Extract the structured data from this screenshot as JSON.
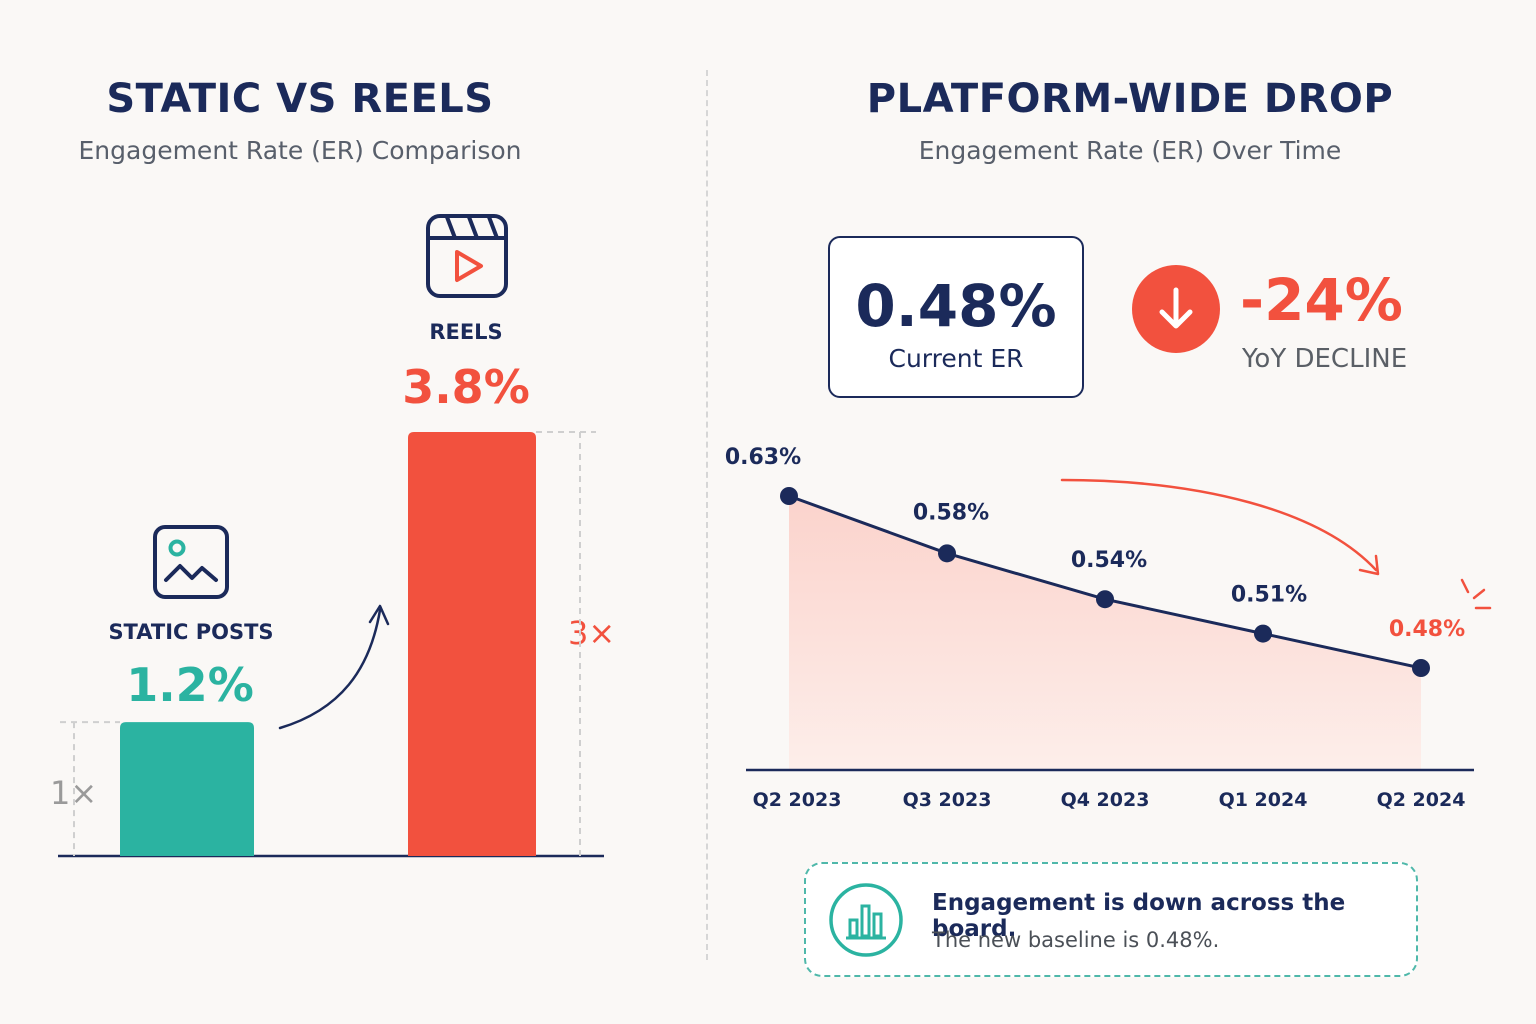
{
  "left": {
    "title": "STATIC VS REELS",
    "subtitle": "Engagement Rate (ER) Comparison",
    "static_label": "STATIC POSTS",
    "static_value": "1.2%",
    "reels_label": "REELS",
    "reels_value": "3.8%",
    "static_multiplier": "1×",
    "reels_multiplier": "3×"
  },
  "right": {
    "title": "PLATFORM-WIDE DROP",
    "subtitle": "Engagement Rate (ER) Over Time",
    "current_value": "0.48%",
    "current_label": "Current ER",
    "decline_value": "-24%",
    "decline_label": "YoY DECLINE",
    "callout_title": "Engagement is down across the board.",
    "callout_body": "The new baseline is 0.48%."
  },
  "colors": {
    "navy": "#1b2a5a",
    "teal": "#2bb3a1",
    "red": "#f2513e",
    "area_fill": "#fbd9d3"
  },
  "icons": {
    "static": "image-icon",
    "reels": "video-clapper-icon",
    "decline": "arrow-down-icon",
    "callout": "bar-chart-icon"
  },
  "chart_data": [
    {
      "type": "bar",
      "title": "STATIC VS REELS",
      "subtitle": "Engagement Rate (ER) Comparison",
      "categories": [
        "STATIC POSTS",
        "REELS"
      ],
      "values": [
        1.2,
        3.8
      ],
      "value_labels": [
        "1.2%",
        "3.8%"
      ],
      "multipliers": [
        "1×",
        "3×"
      ],
      "ylim": [
        0,
        3.8
      ],
      "grid": false,
      "colors": [
        "#2bb3a1",
        "#f2513e"
      ]
    },
    {
      "type": "line",
      "title": "PLATFORM-WIDE DROP",
      "subtitle": "Engagement Rate (ER) Over Time",
      "x": [
        "Q2 2023",
        "Q3 2023",
        "Q4 2023",
        "Q1 2024",
        "Q2 2024"
      ],
      "values": [
        0.63,
        0.58,
        0.54,
        0.51,
        0.48
      ],
      "value_labels": [
        "0.63%",
        "0.58%",
        "0.54%",
        "0.51%",
        "0.48%"
      ],
      "ylim": [
        0.3,
        0.65
      ],
      "grid": false,
      "filled_area": true
    }
  ]
}
